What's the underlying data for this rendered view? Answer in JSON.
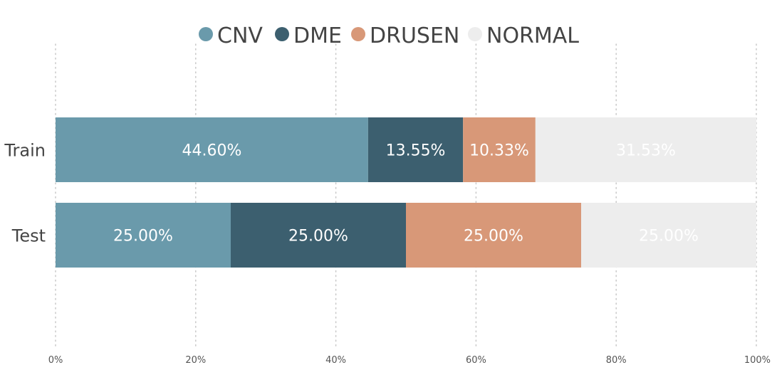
{
  "chart_data": {
    "type": "bar",
    "orientation": "horizontal",
    "stacked": "100%",
    "categories": [
      "Train",
      "Test"
    ],
    "series": [
      {
        "name": "CNV",
        "values": [
          44.6,
          25.0
        ],
        "labels": [
          "44.60%",
          "25.00%"
        ],
        "color": "#6a9aab"
      },
      {
        "name": "DME",
        "values": [
          13.55,
          25.0
        ],
        "labels": [
          "13.55%",
          "25.00%"
        ],
        "color": "#3c5f6f"
      },
      {
        "name": "DRUSEN",
        "values": [
          10.33,
          25.0
        ],
        "labels": [
          "10.33%",
          "25.00%"
        ],
        "color": "#d89878"
      },
      {
        "name": "NORMAL",
        "values": [
          31.53,
          25.0
        ],
        "labels": [
          "31.53%",
          "25.00%"
        ],
        "color": "#ededed"
      }
    ],
    "x_ticks": [
      "0%",
      "20%",
      "40%",
      "60%",
      "80%",
      "100%"
    ],
    "xlim": [
      0,
      100
    ],
    "grid": "vertical-dotted",
    "legend": "top-center",
    "title": "",
    "xlabel": "",
    "ylabel": ""
  }
}
